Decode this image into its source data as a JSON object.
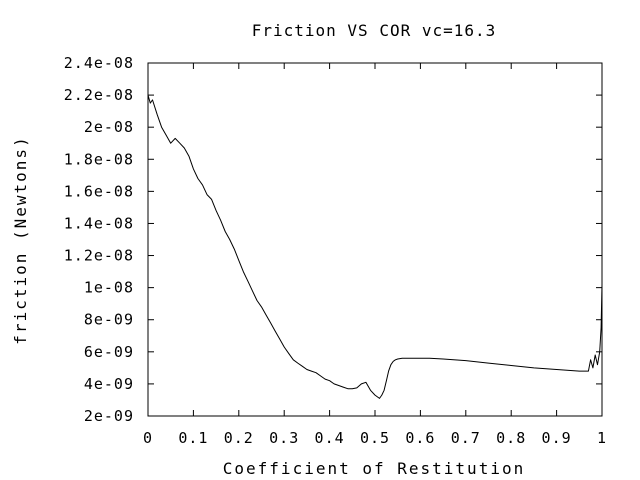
{
  "chart_data": {
    "type": "line",
    "title": "Friction VS COR vc=16.3",
    "xlabel": "Coefficient of Restitution",
    "ylabel": "friction (Newtons)",
    "xlim": [
      0,
      1
    ],
    "ylim": [
      2e-09,
      2.4e-08
    ],
    "grid": false,
    "legend": "none",
    "line_color": "#000000",
    "xticks": [
      {
        "value": 0,
        "label": "0"
      },
      {
        "value": 0.1,
        "label": "0.1"
      },
      {
        "value": 0.2,
        "label": "0.2"
      },
      {
        "value": 0.3,
        "label": "0.3"
      },
      {
        "value": 0.4,
        "label": "0.4"
      },
      {
        "value": 0.5,
        "label": "0.5"
      },
      {
        "value": 0.6,
        "label": "0.6"
      },
      {
        "value": 0.7,
        "label": "0.7"
      },
      {
        "value": 0.8,
        "label": "0.8"
      },
      {
        "value": 0.9,
        "label": "0.9"
      },
      {
        "value": 1,
        "label": "1"
      }
    ],
    "yticks": [
      {
        "value": 2e-09,
        "label": "2e-09"
      },
      {
        "value": 4e-09,
        "label": "4e-09"
      },
      {
        "value": 6e-09,
        "label": "6e-09"
      },
      {
        "value": 8e-09,
        "label": "8e-09"
      },
      {
        "value": 1e-08,
        "label": "1e-08"
      },
      {
        "value": 1.2e-08,
        "label": "1.2e-08"
      },
      {
        "value": 1.4e-08,
        "label": "1.4e-08"
      },
      {
        "value": 1.6e-08,
        "label": "1.6e-08"
      },
      {
        "value": 1.8e-08,
        "label": "1.8e-08"
      },
      {
        "value": 2e-08,
        "label": "2e-08"
      },
      {
        "value": 2.2e-08,
        "label": "2.2e-08"
      },
      {
        "value": 2.4e-08,
        "label": "2.4e-08"
      }
    ],
    "series": [
      {
        "x": [
          0,
          0.005,
          0.01,
          0.02,
          0.03,
          0.04,
          0.05,
          0.06,
          0.07,
          0.08,
          0.09,
          0.1,
          0.11,
          0.12,
          0.13,
          0.14,
          0.15,
          0.16,
          0.17,
          0.18,
          0.19,
          0.2,
          0.21,
          0.22,
          0.23,
          0.24,
          0.25,
          0.26,
          0.27,
          0.28,
          0.29,
          0.3,
          0.31,
          0.32,
          0.33,
          0.34,
          0.35,
          0.36,
          0.37,
          0.38,
          0.39,
          0.4,
          0.41,
          0.42,
          0.43,
          0.44,
          0.45,
          0.46,
          0.47,
          0.48,
          0.49,
          0.5,
          0.51,
          0.515,
          0.52,
          0.525,
          0.53,
          0.535,
          0.54,
          0.545,
          0.55,
          0.56,
          0.58,
          0.6,
          0.62,
          0.65,
          0.7,
          0.75,
          0.8,
          0.85,
          0.9,
          0.95,
          0.97,
          0.975,
          0.98,
          0.985,
          0.99,
          0.995,
          0.998,
          1.0
        ],
        "y": [
          2.2e-08,
          2.15e-08,
          2.17e-08,
          2.08e-08,
          2e-08,
          1.95e-08,
          1.9e-08,
          1.93e-08,
          1.9e-08,
          1.87e-08,
          1.82e-08,
          1.74e-08,
          1.68e-08,
          1.64e-08,
          1.58e-08,
          1.55e-08,
          1.48e-08,
          1.42e-08,
          1.35e-08,
          1.3e-08,
          1.24e-08,
          1.17e-08,
          1.1e-08,
          1.04e-08,
          9.8e-09,
          9.2e-09,
          8.8e-09,
          8.3e-09,
          7.8e-09,
          7.3e-09,
          6.8e-09,
          6.3e-09,
          5.9e-09,
          5.5e-09,
          5.3e-09,
          5.1e-09,
          4.9e-09,
          4.8e-09,
          4.7e-09,
          4.5e-09,
          4.3e-09,
          4.2e-09,
          4e-09,
          3.9e-09,
          3.8e-09,
          3.7e-09,
          3.7e-09,
          3.75e-09,
          4e-09,
          4.1e-09,
          3.6e-09,
          3.3e-09,
          3.1e-09,
          3.3e-09,
          3.6e-09,
          4.2e-09,
          4.8e-09,
          5.2e-09,
          5.4e-09,
          5.5e-09,
          5.55e-09,
          5.6e-09,
          5.6e-09,
          5.6e-09,
          5.6e-09,
          5.55e-09,
          5.45e-09,
          5.3e-09,
          5.15e-09,
          5e-09,
          4.9e-09,
          4.8e-09,
          4.8e-09,
          5.5e-09,
          5e-09,
          5.8e-09,
          5.2e-09,
          6e-09,
          7.5e-09,
          1.02e-08
        ]
      }
    ]
  }
}
